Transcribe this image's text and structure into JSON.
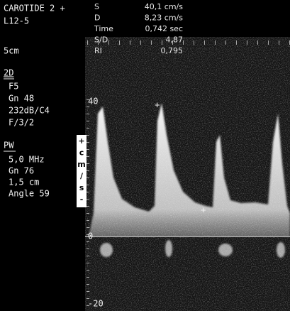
{
  "header": {
    "preset": "CAROTIDE 2 +",
    "probe": "L12-5",
    "depth": "5cm"
  },
  "mode_2d": {
    "label": "2D",
    "settings": [
      "F5",
      "Gn 48",
      "232dB/C4",
      "F/3/2"
    ]
  },
  "pw": {
    "label": "PW",
    "settings": [
      "5,0 MHz",
      "Gn 76",
      "1,5 cm",
      "Angle 59"
    ]
  },
  "measurements": [
    {
      "label": "S",
      "value": "40,1 cm/s"
    },
    {
      "label": "D",
      "value": "8,23 cm/s"
    },
    {
      "label": "Time",
      "value": "0,742 sec"
    },
    {
      "label": "S/D",
      "value": "4,87"
    },
    {
      "label": "RI",
      "value": "0,795"
    }
  ],
  "scale": {
    "unit": [
      "+",
      "c",
      "m",
      "/",
      "s",
      "-"
    ],
    "ticks": [
      "40",
      "0",
      "-20"
    ]
  }
}
